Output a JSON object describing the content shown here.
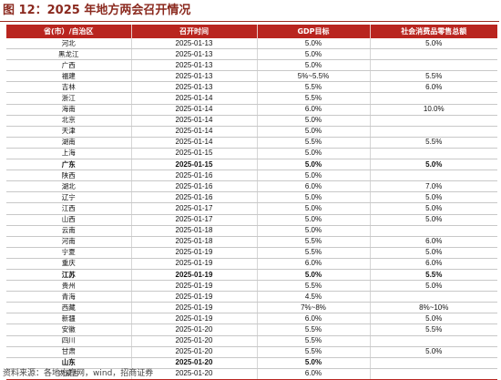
{
  "figure": {
    "title": "图 12：2025 年地方两会召开情况",
    "source": "资料来源：各地方官网，wind，招商证券"
  },
  "table": {
    "headers": [
      "省(市）/自治区",
      "召开时间",
      "GDP目标",
      "社会消费品零售总额"
    ],
    "rows": [
      {
        "region": "河北",
        "date": "2025-01-13",
        "gdp": "5.0%",
        "retail": "5.0%",
        "bold": false
      },
      {
        "region": "黑龙江",
        "date": "2025-01-13",
        "gdp": "5.0%",
        "retail": "",
        "bold": false
      },
      {
        "region": "广西",
        "date": "2025-01-13",
        "gdp": "5.0%",
        "retail": "",
        "bold": false
      },
      {
        "region": "福建",
        "date": "2025-01-13",
        "gdp": "5%~5.5%",
        "retail": "5.5%",
        "bold": false
      },
      {
        "region": "吉林",
        "date": "2025-01-13",
        "gdp": "5.5%",
        "retail": "6.0%",
        "bold": false
      },
      {
        "region": "浙江",
        "date": "2025-01-14",
        "gdp": "5.5%",
        "retail": "",
        "bold": false
      },
      {
        "region": "海南",
        "date": "2025-01-14",
        "gdp": "6.0%",
        "retail": "10.0%",
        "bold": false
      },
      {
        "region": "北京",
        "date": "2025-01-14",
        "gdp": "5.0%",
        "retail": "",
        "bold": false
      },
      {
        "region": "天津",
        "date": "2025-01-14",
        "gdp": "5.0%",
        "retail": "",
        "bold": false
      },
      {
        "region": "湖南",
        "date": "2025-01-14",
        "gdp": "5.5%",
        "retail": "5.5%",
        "bold": false
      },
      {
        "region": "上海",
        "date": "2025-01-15",
        "gdp": "5.0%",
        "retail": "",
        "bold": false
      },
      {
        "region": "广东",
        "date": "2025-01-15",
        "gdp": "5.0%",
        "retail": "5.0%",
        "bold": true
      },
      {
        "region": "陕西",
        "date": "2025-01-16",
        "gdp": "5.0%",
        "retail": "",
        "bold": false
      },
      {
        "region": "湖北",
        "date": "2025-01-16",
        "gdp": "6.0%",
        "retail": "7.0%",
        "bold": false
      },
      {
        "region": "辽宁",
        "date": "2025-01-16",
        "gdp": "5.0%",
        "retail": "5.0%",
        "bold": false
      },
      {
        "region": "江西",
        "date": "2025-01-17",
        "gdp": "5.0%",
        "retail": "5.0%",
        "bold": false
      },
      {
        "region": "山西",
        "date": "2025-01-17",
        "gdp": "5.0%",
        "retail": "5.0%",
        "bold": false
      },
      {
        "region": "云南",
        "date": "2025-01-18",
        "gdp": "5.0%",
        "retail": "",
        "bold": false
      },
      {
        "region": "河南",
        "date": "2025-01-18",
        "gdp": "5.5%",
        "retail": "6.0%",
        "bold": false
      },
      {
        "region": "宁夏",
        "date": "2025-01-19",
        "gdp": "5.5%",
        "retail": "5.0%",
        "bold": false
      },
      {
        "region": "重庆",
        "date": "2025-01-19",
        "gdp": "6.0%",
        "retail": "6.0%",
        "bold": false
      },
      {
        "region": "江苏",
        "date": "2025-01-19",
        "gdp": "5.0%",
        "retail": "5.5%",
        "bold": true
      },
      {
        "region": "贵州",
        "date": "2025-01-19",
        "gdp": "5.5%",
        "retail": "5.0%",
        "bold": false
      },
      {
        "region": "青海",
        "date": "2025-01-19",
        "gdp": "4.5%",
        "retail": "",
        "bold": false
      },
      {
        "region": "西藏",
        "date": "2025-01-19",
        "gdp": "7%~8%",
        "retail": "8%~10%",
        "bold": false
      },
      {
        "region": "新疆",
        "date": "2025-01-19",
        "gdp": "6.0%",
        "retail": "5.0%",
        "bold": false
      },
      {
        "region": "安徽",
        "date": "2025-01-20",
        "gdp": "5.5%",
        "retail": "5.5%",
        "bold": false
      },
      {
        "region": "四川",
        "date": "2025-01-20",
        "gdp": "5.5%",
        "retail": "",
        "bold": false
      },
      {
        "region": "甘肃",
        "date": "2025-01-20",
        "gdp": "5.5%",
        "retail": "5.0%",
        "bold": false
      },
      {
        "region": "山东",
        "date": "2025-01-20",
        "gdp": "5.0%",
        "retail": "",
        "bold": true
      },
      {
        "region": "内蒙古",
        "date": "2025-01-20",
        "gdp": "6.0%",
        "retail": "",
        "bold": false
      }
    ]
  }
}
